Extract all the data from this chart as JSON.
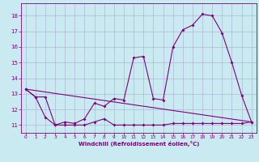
{
  "xlabel": "Windchill (Refroidissement éolien,°C)",
  "bg_color": "#c8eaf0",
  "line_color": "#800080",
  "grid_color": "#b0b8d8",
  "xlim": [
    -0.5,
    23.5
  ],
  "ylim": [
    10.5,
    18.8
  ],
  "yticks": [
    11,
    12,
    13,
    14,
    15,
    16,
    17,
    18
  ],
  "xticks": [
    0,
    1,
    2,
    3,
    4,
    5,
    6,
    7,
    8,
    9,
    10,
    11,
    12,
    13,
    14,
    15,
    16,
    17,
    18,
    19,
    20,
    21,
    22,
    23
  ],
  "line1_x": [
    0,
    1,
    2,
    3,
    4,
    5,
    6,
    7,
    8,
    9,
    10,
    11,
    12,
    13,
    14,
    15,
    16,
    17,
    18,
    19,
    20,
    21,
    22,
    23
  ],
  "line1_y": [
    13.3,
    12.8,
    12.8,
    11.0,
    11.0,
    11.0,
    11.0,
    11.2,
    11.4,
    11.0,
    11.0,
    11.0,
    11.0,
    11.0,
    11.0,
    11.1,
    11.1,
    11.1,
    11.1,
    11.1,
    11.1,
    11.1,
    11.1,
    11.2
  ],
  "line2_x": [
    0,
    1,
    2,
    3,
    4,
    5,
    6,
    7,
    8,
    9,
    10,
    11,
    12,
    13,
    14,
    15,
    16,
    17,
    18,
    19,
    20,
    21,
    22,
    23
  ],
  "line2_y": [
    13.3,
    12.8,
    11.5,
    11.0,
    11.2,
    11.1,
    11.4,
    12.4,
    12.2,
    12.7,
    12.6,
    15.3,
    15.4,
    12.7,
    12.6,
    16.0,
    17.1,
    17.4,
    18.1,
    18.0,
    16.9,
    15.0,
    12.9,
    11.2
  ],
  "line3_x": [
    0,
    23
  ],
  "line3_y": [
    13.3,
    11.2
  ]
}
